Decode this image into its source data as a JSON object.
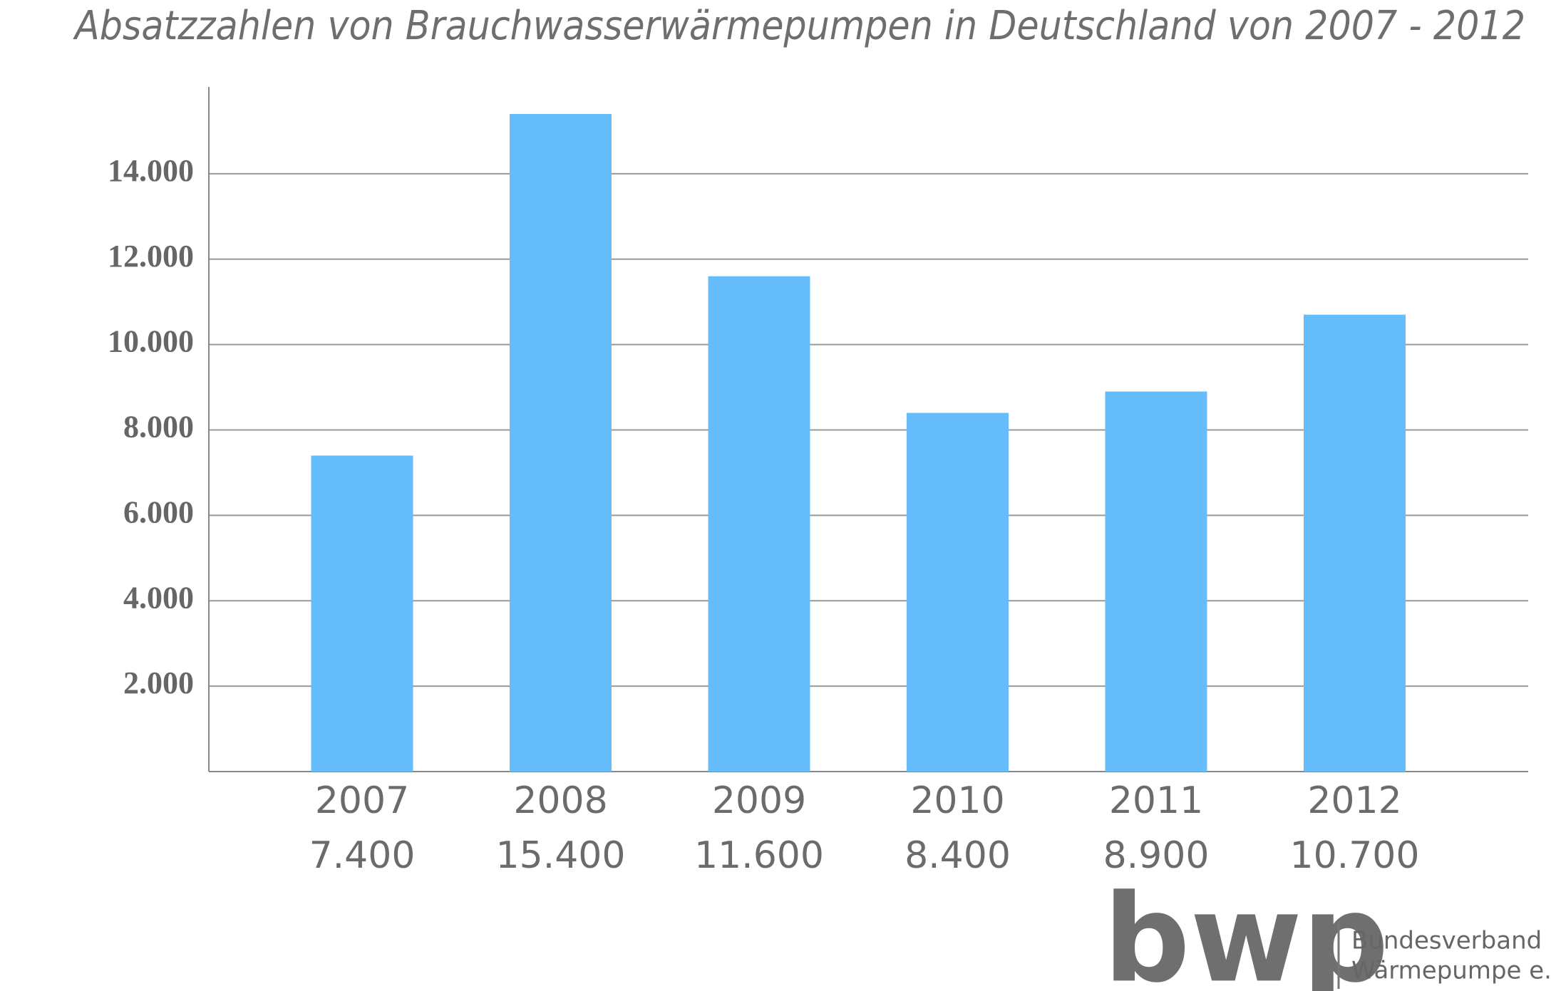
{
  "chart_data": {
    "type": "bar",
    "title": "Absatzzahlen von Brauchwasserwärmepumpen in Deutschland von 2007 - 2012",
    "categories": [
      "2007",
      "2008",
      "2009",
      "2010",
      "2011",
      "2012"
    ],
    "values": [
      7400,
      15400,
      11600,
      8400,
      8900,
      10700
    ],
    "value_labels": [
      "7.400",
      "15.400",
      "11.600",
      "8.400",
      "8.900",
      "10.700"
    ],
    "color": "#66bdfc",
    "ylim": [
      0,
      16000
    ],
    "yticks": [
      {
        "value": 2000,
        "label": "2.000"
      },
      {
        "value": 4000,
        "label": "4.000"
      },
      {
        "value": 6000,
        "label": "6.000"
      },
      {
        "value": 8000,
        "label": "8.000"
      },
      {
        "value": 10000,
        "label": "10.000"
      },
      {
        "value": 12000,
        "label": "12.000"
      },
      {
        "value": 14000,
        "label": "14.000"
      }
    ],
    "grid": true,
    "logo": {
      "mark": "bwp",
      "lines": [
        "Bundesverband",
        "Wärmepumpe e.V."
      ]
    }
  }
}
